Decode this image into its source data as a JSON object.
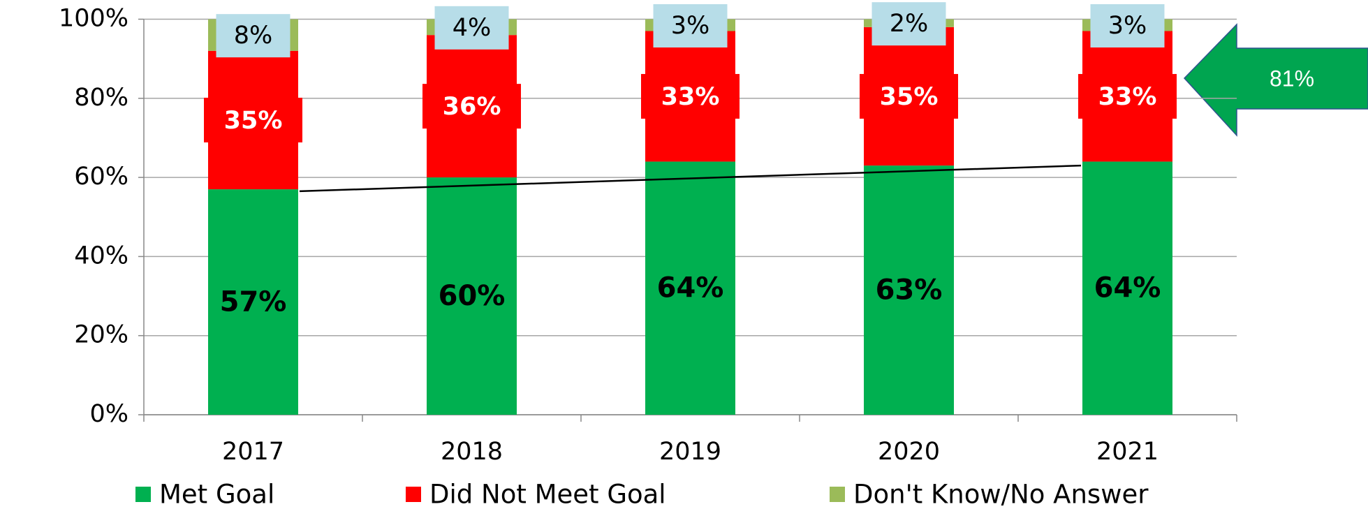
{
  "chart_data": {
    "type": "stacked_bar",
    "categories": [
      "2017",
      "2018",
      "2019",
      "2020",
      "2021"
    ],
    "series": [
      {
        "name": "Met Goal",
        "color": "#00b050",
        "values": [
          57,
          60,
          64,
          63,
          64
        ],
        "value_labels": [
          "57%",
          "60%",
          "64%",
          "63%",
          "64%"
        ]
      },
      {
        "name": "Did Not Meet Goal",
        "color": "#ff0000",
        "values": [
          35,
          36,
          33,
          35,
          33
        ],
        "value_labels": [
          "35%",
          "36%",
          "33%",
          "35%",
          "33%"
        ]
      },
      {
        "name": "Don't Know/No Answer",
        "color": "#9bbb59",
        "values": [
          8,
          4,
          3,
          2,
          3
        ],
        "value_labels": [
          "8%",
          "4%",
          "3%",
          "2%",
          "3%"
        ]
      }
    ],
    "ylim": [
      0,
      100
    ],
    "yticks": [
      {
        "value": 0,
        "label": "0%"
      },
      {
        "value": 20,
        "label": "20%"
      },
      {
        "value": 40,
        "label": "40%"
      },
      {
        "value": 60,
        "label": "60%"
      },
      {
        "value": 80,
        "label": "80%"
      },
      {
        "value": 100,
        "label": "100%"
      }
    ],
    "grid": true,
    "trend_line": [
      56.5,
      63
    ],
    "annotation": "81%",
    "annotation_color": "#00a550",
    "legend": "bottom"
  }
}
